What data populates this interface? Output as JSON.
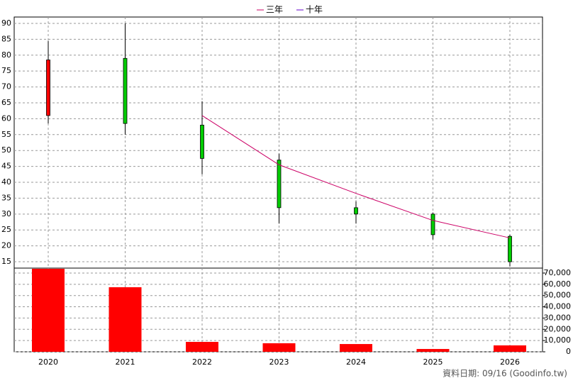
{
  "chart_data": {
    "type": "candlestick",
    "categories": [
      "2020",
      "2021",
      "2022",
      "2023",
      "2024",
      "2025",
      "2026"
    ],
    "open": [
      61,
      79,
      58,
      47,
      32,
      30,
      23
    ],
    "high": [
      84.5,
      90,
      65.5,
      49,
      34,
      30.5,
      23.5
    ],
    "low": [
      58.5,
      55,
      42.5,
      27,
      27,
      22,
      13.5
    ],
    "close": [
      78.5,
      58.5,
      47.5,
      32,
      30,
      23.5,
      15
    ],
    "up_color": "#ff0000",
    "down_color": "#00cc00",
    "series": [
      {
        "name": "三年",
        "color": "#cc0066",
        "values": [
          null,
          null,
          61,
          45.5,
          36.5,
          28,
          22.5
        ]
      },
      {
        "name": "十年",
        "color": "#6600cc",
        "values": [
          null,
          null,
          null,
          null,
          null,
          null,
          null
        ]
      }
    ],
    "ylim": [
      13,
      92
    ],
    "yticks": [
      15,
      20,
      25,
      30,
      35,
      40,
      45,
      50,
      55,
      60,
      65,
      70,
      75,
      80,
      85,
      90
    ],
    "volume": {
      "color": "#ff0000",
      "values": [
        73800,
        57400,
        8800,
        7600,
        6900,
        2500,
        5700
      ]
    },
    "y2lim": [
      0,
      74400
    ],
    "y2ticks": [
      0,
      {
        "value": 10000,
        "label": "10,000"
      },
      {
        "value": 20000,
        "label": "20,000"
      },
      {
        "value": 30000,
        "label": "30,000"
      },
      {
        "value": 40000,
        "label": "40,000"
      },
      {
        "value": 50000,
        "label": "50,000"
      },
      {
        "value": 60000,
        "label": "60,000"
      },
      {
        "value": 70000,
        "label": "70,000"
      }
    ],
    "grid": true,
    "footnote": "資料日期: 09/16  (Goodinfo.tw)"
  }
}
